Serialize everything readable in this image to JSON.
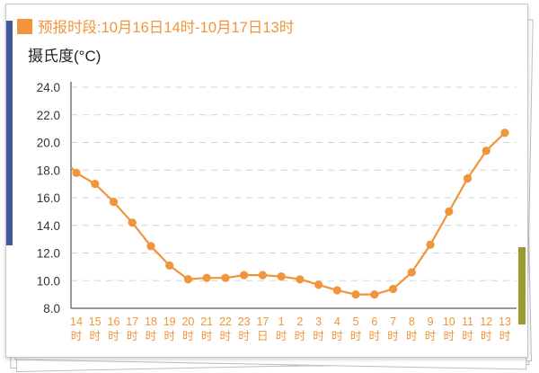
{
  "header": {
    "legend_color": "#f0953a",
    "forecast_label": "预报时段:10月16日14时-10月17日13时"
  },
  "chart_data": {
    "type": "line",
    "ylabel": "摄氏度(°C)",
    "ylim": [
      8.0,
      24.0
    ],
    "y_ticks": [
      "24.0",
      "22.0",
      "20.0",
      "18.0",
      "16.0",
      "14.0",
      "12.0",
      "10.0",
      "8.0"
    ],
    "grid": true,
    "line_color": "#f0953a",
    "x_labels": [
      [
        "14",
        "时"
      ],
      [
        "15",
        "时"
      ],
      [
        "16",
        "时"
      ],
      [
        "17",
        "时"
      ],
      [
        "18",
        "时"
      ],
      [
        "19",
        "时"
      ],
      [
        "20",
        "时"
      ],
      [
        "21",
        "时"
      ],
      [
        "22",
        "时"
      ],
      [
        "23",
        "时"
      ],
      [
        "17",
        "日"
      ],
      [
        "1",
        "时"
      ],
      [
        "2",
        "时"
      ],
      [
        "3",
        "时"
      ],
      [
        "4",
        "时"
      ],
      [
        "5",
        "时"
      ],
      [
        "6",
        "时"
      ],
      [
        "7",
        "时"
      ],
      [
        "8",
        "时"
      ],
      [
        "9",
        "时"
      ],
      [
        "10",
        "时"
      ],
      [
        "11",
        "时"
      ],
      [
        "12",
        "时"
      ],
      [
        "13",
        "时"
      ]
    ],
    "series": [
      {
        "values": [
          17.8,
          17.0,
          15.7,
          14.2,
          12.5,
          11.1,
          10.1,
          10.2,
          10.2,
          10.4,
          10.4,
          10.3,
          10.1,
          9.7,
          9.3,
          9.0,
          9.0,
          9.4,
          10.6,
          12.6,
          15.0,
          17.4,
          19.4,
          20.7
        ]
      }
    ]
  }
}
